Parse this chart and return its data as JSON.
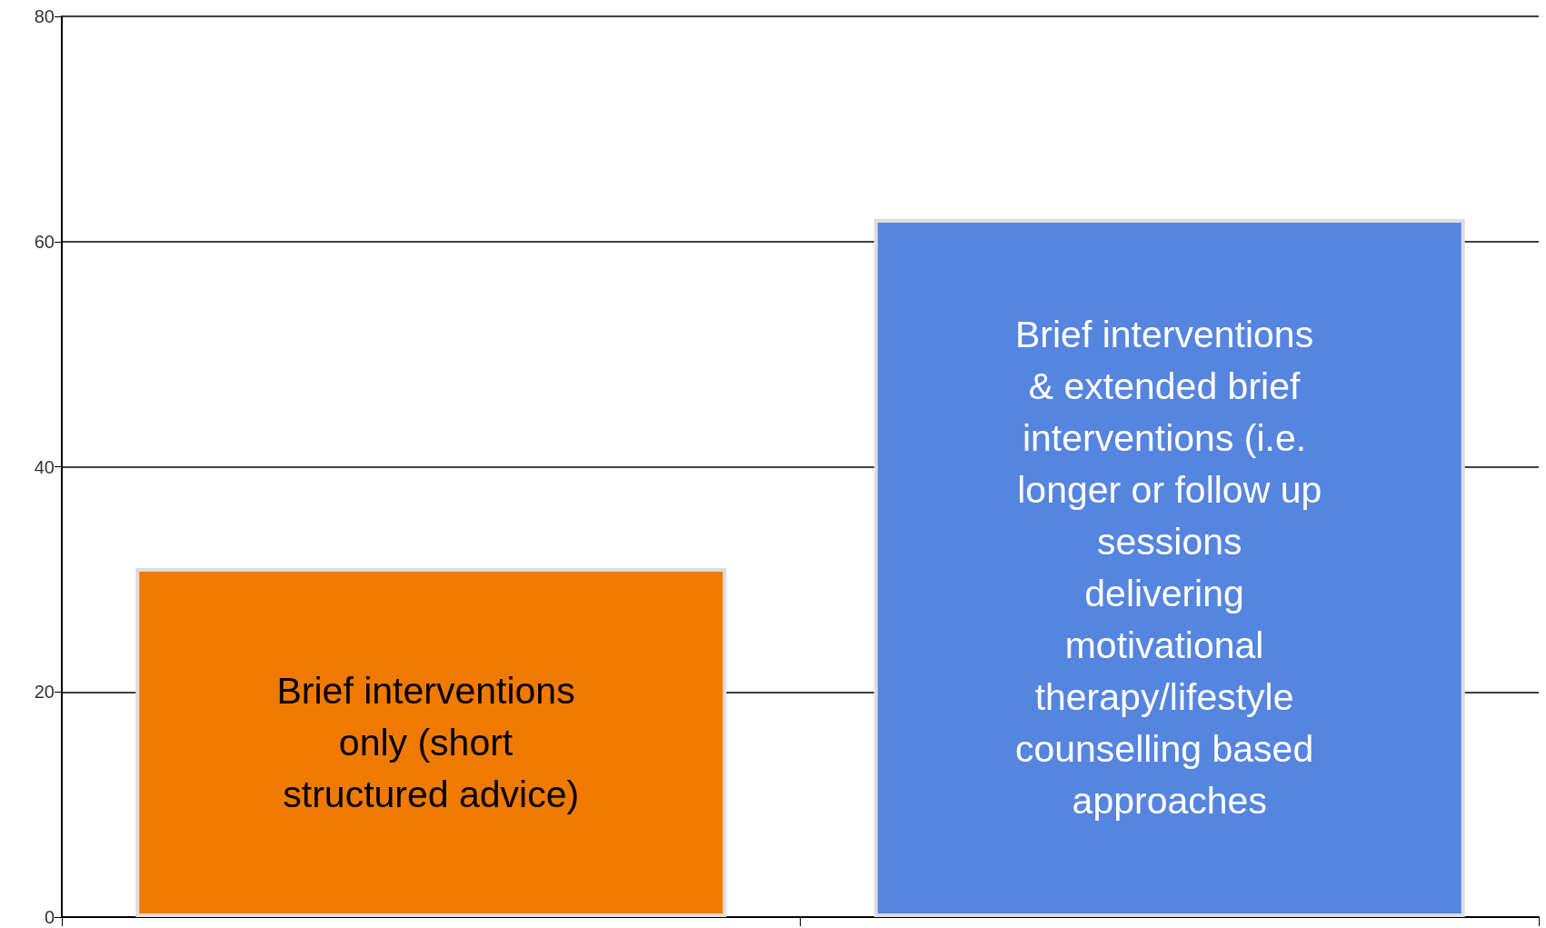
{
  "chart_data": {
    "type": "bar",
    "categories": [
      "Brief interventions only (short structured advice)",
      "Brief interventions & extended brief interventions (i.e. longer or follow up sessions delivering motivational therapy/lifestyle counselling based approaches"
    ],
    "values": [
      31,
      62
    ],
    "colors": [
      "#f07a00",
      "#5585de"
    ],
    "ylim": [
      0,
      80
    ],
    "yticks": [
      0,
      20,
      40,
      60,
      80
    ],
    "grid": "y",
    "tick_labels": "y"
  }
}
